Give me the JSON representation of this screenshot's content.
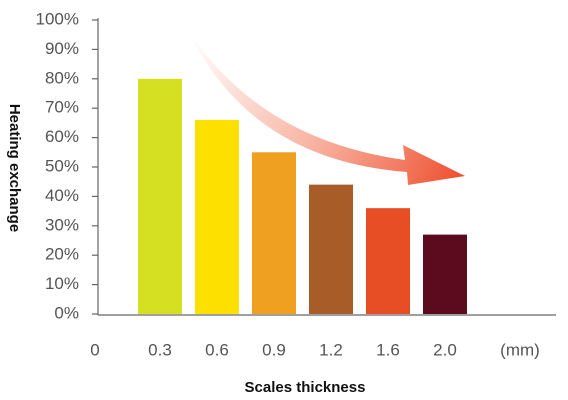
{
  "chart_data": {
    "type": "bar",
    "x_label": "Scales thickness",
    "y_label": "Heating exchange",
    "x_origin_label": "0",
    "x_unit_label": "(mm)",
    "categories": [
      "0.3",
      "0.6",
      "0.9",
      "1.2",
      "1.6",
      "2.0"
    ],
    "values": [
      80,
      66,
      55,
      44,
      36,
      27
    ],
    "colors": [
      "#d4e021",
      "#fde000",
      "#f0a020",
      "#a85d28",
      "#e84e25",
      "#5c0a1e"
    ],
    "ylim": [
      0,
      100
    ],
    "yticks": [
      {
        "value": 0,
        "label": "0%"
      },
      {
        "value": 10,
        "label": "10%"
      },
      {
        "value": 20,
        "label": "20%"
      },
      {
        "value": 30,
        "label": "30%"
      },
      {
        "value": 40,
        "label": "40%"
      },
      {
        "value": 50,
        "label": "50%"
      },
      {
        "value": 60,
        "label": "60%"
      },
      {
        "value": 70,
        "label": "70%"
      },
      {
        "value": 80,
        "label": "80%"
      },
      {
        "value": 90,
        "label": "90%"
      },
      {
        "value": 100,
        "label": "100%"
      }
    ],
    "grid": false
  }
}
